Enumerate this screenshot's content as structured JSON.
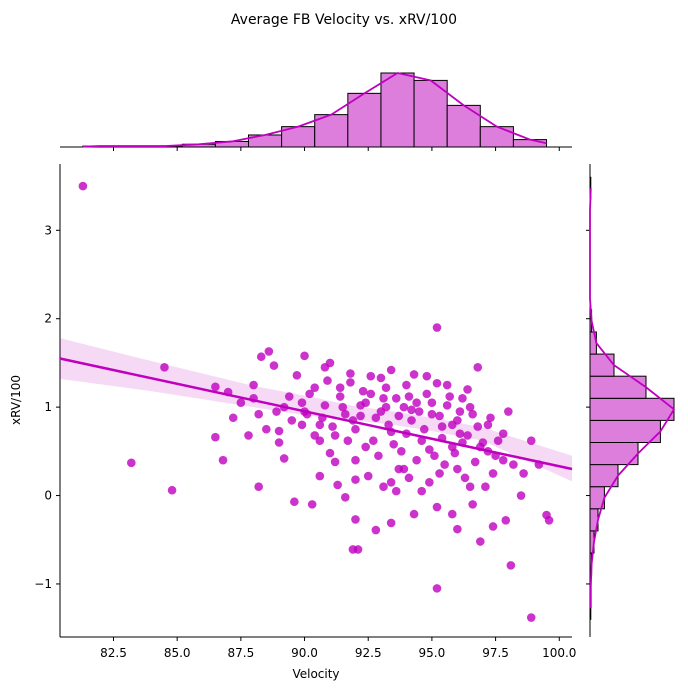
{
  "chart_data": {
    "type": "scatter",
    "title": "Average FB Velocity vs. xRV/100",
    "xlabel": "Velocity",
    "ylabel": "xRV/100",
    "xlim": [
      80.4,
      100.5
    ],
    "ylim": [
      -1.6,
      3.75
    ],
    "x_ticks": [
      82.5,
      85.0,
      87.5,
      90.0,
      92.5,
      95.0,
      97.5,
      100.0
    ],
    "x_tick_labels": [
      "82.5",
      "85.0",
      "87.5",
      "90.0",
      "92.5",
      "95.0",
      "97.5",
      "100.0"
    ],
    "y_ticks": [
      -1,
      0,
      1,
      2,
      3
    ],
    "y_tick_labels": [
      "−1",
      "0",
      "1",
      "2",
      "3"
    ],
    "grid": false,
    "color": "#BF00BF",
    "histogram_fill": "#DD7EDD",
    "regression": {
      "x": [
        80.4,
        100.5
      ],
      "y": [
        1.55,
        0.3
      ],
      "ci_x": [
        80.4,
        84,
        88,
        90,
        92,
        93.5,
        95,
        97,
        100.5
      ],
      "ci_upper": [
        1.78,
        1.52,
        1.24,
        1.13,
        1.01,
        0.95,
        0.88,
        0.77,
        0.45
      ],
      "ci_lower": [
        1.32,
        1.18,
        1.0,
        0.91,
        0.85,
        0.8,
        0.73,
        0.62,
        0.16
      ]
    },
    "points": [
      [
        81.3,
        3.5
      ],
      [
        83.2,
        0.37
      ],
      [
        84.5,
        1.45
      ],
      [
        84.8,
        0.06
      ],
      [
        86.5,
        1.23
      ],
      [
        86.5,
        0.66
      ],
      [
        86.8,
        0.4
      ],
      [
        87.0,
        1.17
      ],
      [
        87.2,
        0.88
      ],
      [
        87.5,
        1.05
      ],
      [
        87.8,
        0.68
      ],
      [
        88.0,
        1.25
      ],
      [
        88.2,
        0.92
      ],
      [
        88.3,
        1.57
      ],
      [
        88.5,
        0.75
      ],
      [
        88.6,
        1.63
      ],
      [
        88.8,
        1.47
      ],
      [
        89.0,
        0.73
      ],
      [
        89.2,
        1.0
      ],
      [
        89.5,
        0.85
      ],
      [
        89.7,
        1.36
      ],
      [
        89.9,
        1.05
      ],
      [
        90.1,
        0.92
      ],
      [
        90.4,
        1.22
      ],
      [
        90.6,
        0.8
      ],
      [
        90.8,
        1.02
      ],
      [
        91.0,
        1.5
      ],
      [
        91.2,
        0.68
      ],
      [
        91.4,
        1.12
      ],
      [
        91.6,
        0.92
      ],
      [
        91.8,
        1.28
      ],
      [
        92.0,
        0.75
      ],
      [
        92.2,
        1.02
      ],
      [
        92.4,
        0.55
      ],
      [
        92.6,
        1.15
      ],
      [
        92.8,
        0.88
      ],
      [
        93.0,
        1.33
      ],
      [
        93.2,
        1.0
      ],
      [
        93.4,
        0.72
      ],
      [
        93.6,
        1.1
      ],
      [
        93.8,
        0.5
      ],
      [
        94.0,
        1.25
      ],
      [
        94.2,
        0.85
      ],
      [
        94.4,
        1.05
      ],
      [
        94.6,
        0.62
      ],
      [
        94.8,
        1.15
      ],
      [
        95.0,
        0.92
      ],
      [
        95.2,
        1.27
      ],
      [
        95.4,
        0.78
      ],
      [
        95.6,
        1.02
      ],
      [
        95.8,
        0.55
      ],
      [
        96.0,
        0.85
      ],
      [
        96.2,
        1.1
      ],
      [
        96.4,
        0.68
      ],
      [
        96.6,
        0.92
      ],
      [
        96.8,
        1.45
      ],
      [
        97.0,
        0.6
      ],
      [
        97.2,
        0.8
      ],
      [
        97.5,
        0.45
      ],
      [
        97.8,
        0.7
      ],
      [
        98.0,
        0.95
      ],
      [
        98.2,
        0.35
      ],
      [
        98.6,
        0.25
      ],
      [
        98.9,
        0.62
      ],
      [
        99.2,
        0.35
      ],
      [
        99.5,
        -0.22
      ],
      [
        88.2,
        0.1
      ],
      [
        89.2,
        0.42
      ],
      [
        89.6,
        -0.07
      ],
      [
        90.3,
        -0.1
      ],
      [
        90.6,
        0.22
      ],
      [
        91.0,
        0.48
      ],
      [
        91.3,
        0.12
      ],
      [
        91.6,
        -0.02
      ],
      [
        91.9,
        -0.61
      ],
      [
        92.1,
        -0.61
      ],
      [
        92.0,
        -0.27
      ],
      [
        92.5,
        0.22
      ],
      [
        92.8,
        -0.39
      ],
      [
        93.1,
        0.1
      ],
      [
        93.4,
        -0.31
      ],
      [
        93.6,
        0.05
      ],
      [
        93.9,
        0.3
      ],
      [
        94.3,
        -0.21
      ],
      [
        94.6,
        0.05
      ],
      [
        94.9,
        0.15
      ],
      [
        95.2,
        -0.13
      ],
      [
        95.2,
        -1.05
      ],
      [
        95.5,
        0.35
      ],
      [
        95.8,
        -0.21
      ],
      [
        96.0,
        -0.38
      ],
      [
        96.3,
        0.2
      ],
      [
        96.6,
        -0.1
      ],
      [
        96.9,
        -0.52
      ],
      [
        97.1,
        0.1
      ],
      [
        97.4,
        -0.35
      ],
      [
        97.9,
        -0.28
      ],
      [
        98.1,
        -0.79
      ],
      [
        98.5,
        0.0
      ],
      [
        98.9,
        -1.38
      ],
      [
        99.6,
        -0.28
      ],
      [
        95.2,
        1.9
      ],
      [
        90.0,
        1.58
      ],
      [
        90.8,
        1.45
      ],
      [
        91.8,
        1.38
      ],
      [
        92.6,
        1.35
      ],
      [
        93.4,
        1.42
      ],
      [
        94.3,
        1.37
      ],
      [
        94.8,
        1.35
      ],
      [
        95.6,
        1.25
      ],
      [
        96.4,
        1.2
      ],
      [
        90.2,
        1.15
      ],
      [
        90.9,
        1.3
      ],
      [
        91.4,
        1.22
      ],
      [
        92.3,
        1.18
      ],
      [
        93.2,
        1.22
      ],
      [
        94.1,
        1.12
      ],
      [
        95.0,
        1.05
      ],
      [
        95.7,
        1.12
      ],
      [
        96.5,
        1.0
      ],
      [
        97.3,
        0.88
      ],
      [
        89.9,
        0.8
      ],
      [
        90.6,
        0.62
      ],
      [
        91.1,
        0.78
      ],
      [
        91.9,
        0.85
      ],
      [
        92.7,
        0.62
      ],
      [
        93.3,
        0.8
      ],
      [
        94.0,
        0.7
      ],
      [
        94.7,
        0.75
      ],
      [
        95.4,
        0.65
      ],
      [
        96.1,
        0.7
      ],
      [
        96.9,
        0.55
      ],
      [
        97.6,
        0.62
      ],
      [
        89.4,
        1.12
      ],
      [
        90.0,
        0.95
      ],
      [
        90.7,
        0.88
      ],
      [
        91.5,
        1.0
      ],
      [
        92.2,
        0.9
      ],
      [
        93.0,
        0.95
      ],
      [
        93.7,
        0.9
      ],
      [
        94.5,
        0.95
      ],
      [
        95.3,
        0.9
      ],
      [
        96.1,
        0.95
      ],
      [
        96.8,
        0.78
      ],
      [
        91.2,
        0.38
      ],
      [
        92.0,
        0.4
      ],
      [
        92.9,
        0.45
      ],
      [
        93.7,
        0.3
      ],
      [
        94.4,
        0.4
      ],
      [
        95.1,
        0.45
      ],
      [
        96.0,
        0.3
      ],
      [
        96.7,
        0.38
      ],
      [
        97.4,
        0.25
      ],
      [
        90.4,
        0.68
      ],
      [
        91.7,
        0.62
      ],
      [
        93.5,
        0.58
      ],
      [
        94.9,
        0.52
      ],
      [
        95.9,
        0.48
      ],
      [
        97.2,
        0.5
      ],
      [
        89.0,
        0.6
      ],
      [
        88.9,
        0.95
      ],
      [
        88.0,
        1.1
      ],
      [
        92.4,
        1.05
      ],
      [
        93.1,
        1.1
      ],
      [
        93.9,
        1.0
      ],
      [
        94.2,
        0.97
      ],
      [
        95.8,
        0.8
      ],
      [
        96.2,
        0.6
      ],
      [
        92.0,
        0.18
      ],
      [
        93.4,
        0.15
      ],
      [
        94.1,
        0.2
      ],
      [
        95.3,
        0.25
      ],
      [
        96.5,
        0.1
      ],
      [
        97.8,
        0.4
      ]
    ],
    "x_hist": {
      "bins": [
        81.3,
        82.6,
        83.9,
        85.2,
        86.5,
        87.8,
        89.1,
        90.4,
        91.7,
        93.0,
        94.3,
        95.6,
        96.9,
        98.2,
        99.5
      ],
      "counts": [
        1,
        1,
        1,
        3,
        6,
        13,
        22,
        35,
        58,
        80,
        72,
        45,
        22,
        8
      ]
    },
    "y_hist": {
      "bins": [
        -1.4,
        -1.15,
        -0.9,
        -0.65,
        -0.4,
        -0.15,
        0.1,
        0.35,
        0.6,
        0.85,
        1.1,
        1.35,
        1.6,
        1.85,
        2.1,
        2.35,
        2.6,
        2.85,
        3.1,
        3.35,
        3.6
      ],
      "counts": [
        1,
        1,
        2,
        5,
        10,
        18,
        35,
        60,
        88,
        105,
        70,
        30,
        8,
        2,
        0,
        0,
        0,
        0,
        0,
        1
      ]
    }
  }
}
